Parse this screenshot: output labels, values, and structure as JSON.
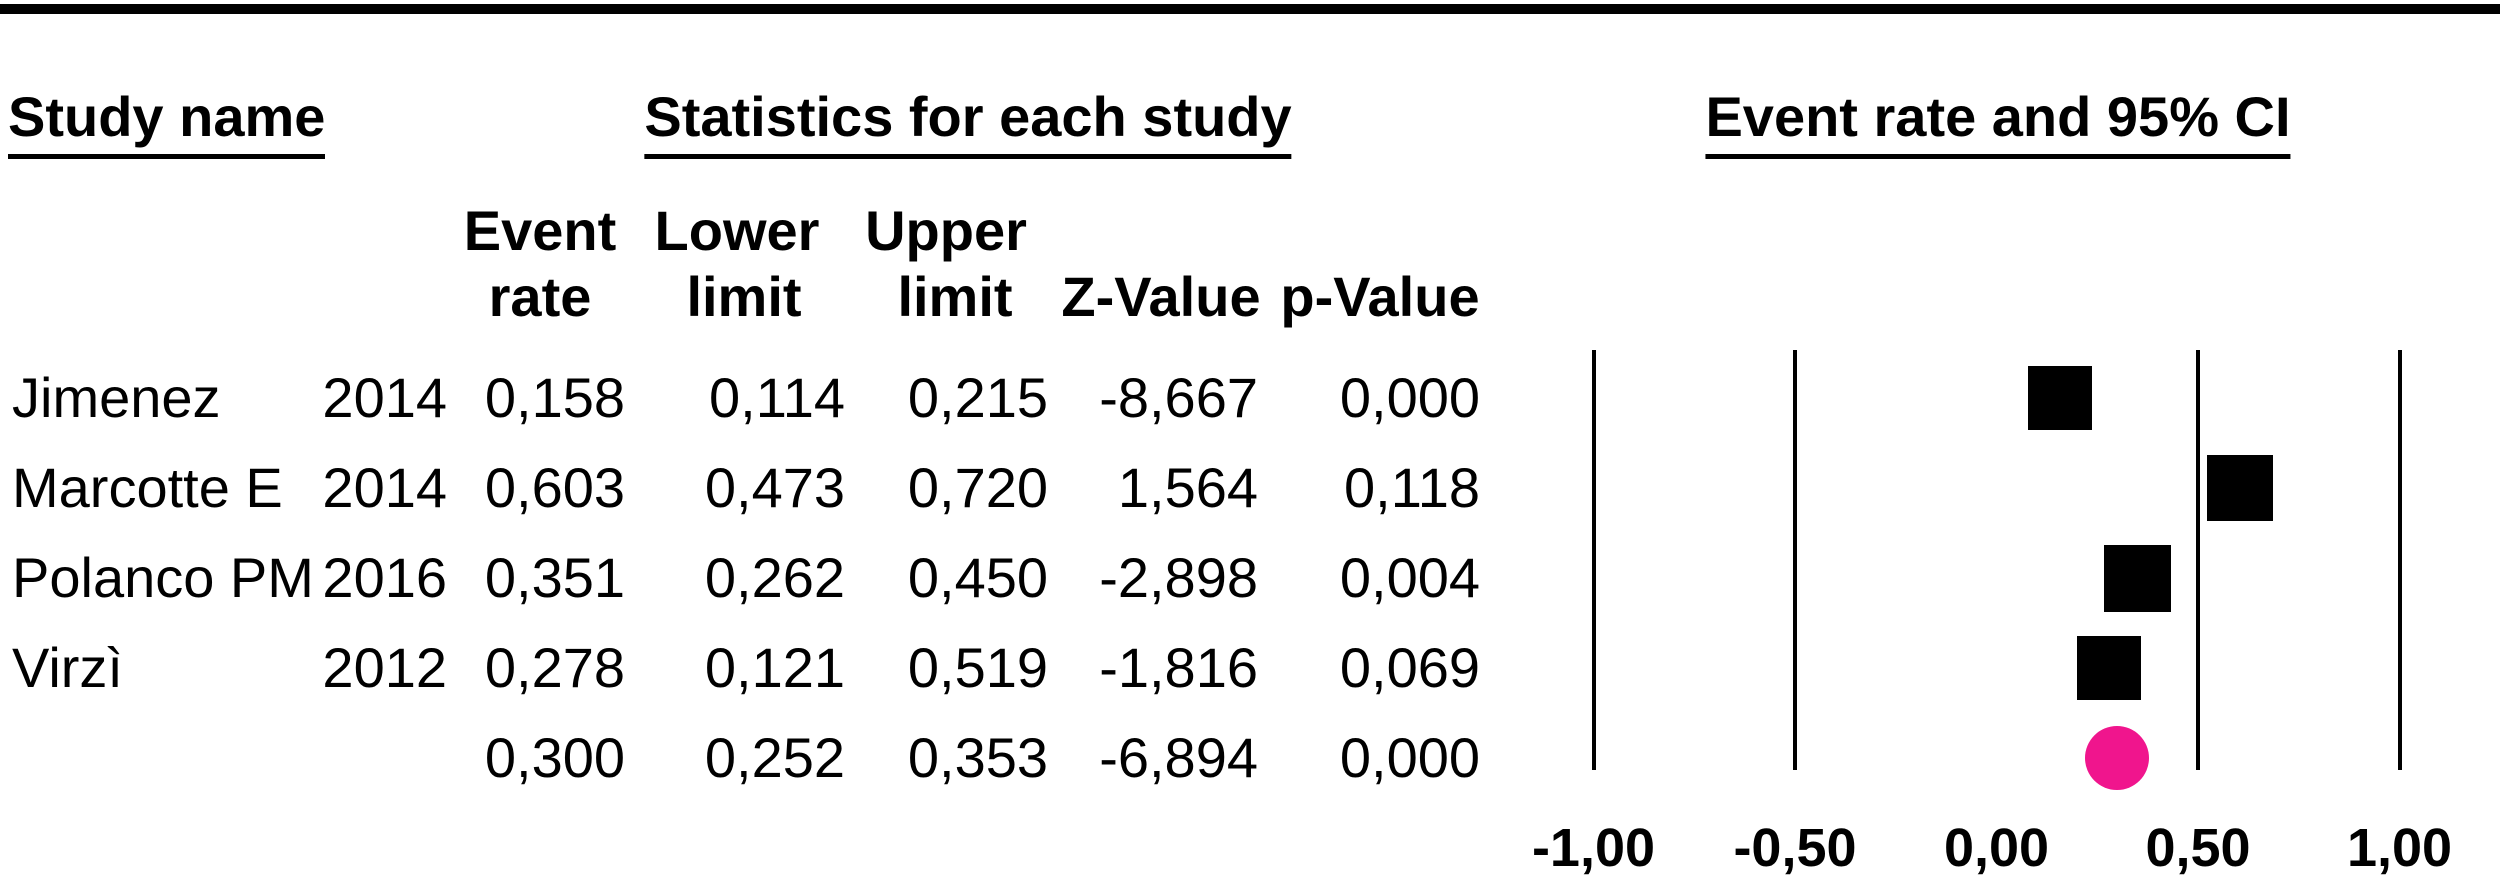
{
  "headers": {
    "study_name": "Study name",
    "statistics": "Statistics for each study",
    "plot": "Event rate and 95% CI"
  },
  "columns": {
    "event_l1": "Event",
    "event_l2": "rate",
    "lower_l1": "Lower",
    "lower_l2": "limit",
    "upper_l1": "Upper",
    "upper_l2": "limit",
    "z": "Z-Value",
    "p": "p-Value"
  },
  "table": {
    "rows": [
      {
        "name": "Jimenez",
        "year": "2014",
        "values": [
          "0,158",
          "0,114",
          "0,215",
          "-8,667",
          "0,000"
        ]
      },
      {
        "name": "Marcotte E",
        "year": "2014",
        "values": [
          "0,603",
          "0,473",
          "0,720",
          "1,564",
          "0,118"
        ]
      },
      {
        "name": "Polanco PM",
        "year": "2016",
        "values": [
          "0,351",
          "0,262",
          "0,450",
          "-2,898",
          "0,004"
        ]
      },
      {
        "name": "Virzì",
        "year": "2012",
        "values": [
          "0,278",
          "0,121",
          "0,519",
          "-1,816",
          "0,069"
        ]
      },
      {
        "name": "",
        "year": "",
        "values": [
          "0,300",
          "0,252",
          "0,353",
          "-6,894",
          "0,000"
        ]
      }
    ]
  },
  "axis": {
    "tick_labels": [
      "-1,00",
      "-0,50",
      "0,00",
      "0,50",
      "1,00"
    ]
  },
  "colors": {
    "marker_black": "#000000",
    "summary_pink": "#F0158D"
  },
  "chart_data": {
    "type": "scatter",
    "variant": "forest-plot",
    "title": "Event rate and 95% CI",
    "x_axis": {
      "min": -1.0,
      "max": 1.0,
      "tick_values": [
        -1.0,
        -0.5,
        0.0,
        0.5,
        1.0
      ],
      "tick_labels": [
        "-1,00",
        "-0,50",
        "0,00",
        "0,50",
        "1,00"
      ],
      "gridline_values": [
        -1.0,
        -0.5,
        0.5,
        1.0
      ],
      "decimal_separator": ","
    },
    "legend_position": "none",
    "grid": "vertical-lines-only",
    "studies": [
      {
        "name": "Jimenez",
        "year": "2014",
        "event_rate": 0.158,
        "lower_limit": 0.114,
        "upper_limit": 0.215,
        "z_value": -8.667,
        "p_value": 0.0,
        "marker": "square",
        "marker_color": "#000000",
        "marker_size": 64
      },
      {
        "name": "Marcotte E",
        "year": "2014",
        "event_rate": 0.603,
        "lower_limit": 0.473,
        "upper_limit": 0.72,
        "z_value": 1.564,
        "p_value": 0.118,
        "marker": "square",
        "marker_color": "#000000",
        "marker_size": 66
      },
      {
        "name": "Polanco PM",
        "year": "2016",
        "event_rate": 0.351,
        "lower_limit": 0.262,
        "upper_limit": 0.45,
        "z_value": -2.898,
        "p_value": 0.004,
        "marker": "square",
        "marker_color": "#000000",
        "marker_size": 67
      },
      {
        "name": "Virzì",
        "year": "2012",
        "event_rate": 0.278,
        "lower_limit": 0.121,
        "upper_limit": 0.519,
        "z_value": -1.816,
        "p_value": 0.069,
        "marker": "square",
        "marker_color": "#000000",
        "marker_size": 64
      }
    ],
    "summary": {
      "event_rate": 0.3,
      "lower_limit": 0.252,
      "upper_limit": 0.353,
      "z_value": -6.894,
      "p_value": 0.0,
      "marker": "circle",
      "marker_color": "#F0158D",
      "marker_size": 64
    }
  }
}
